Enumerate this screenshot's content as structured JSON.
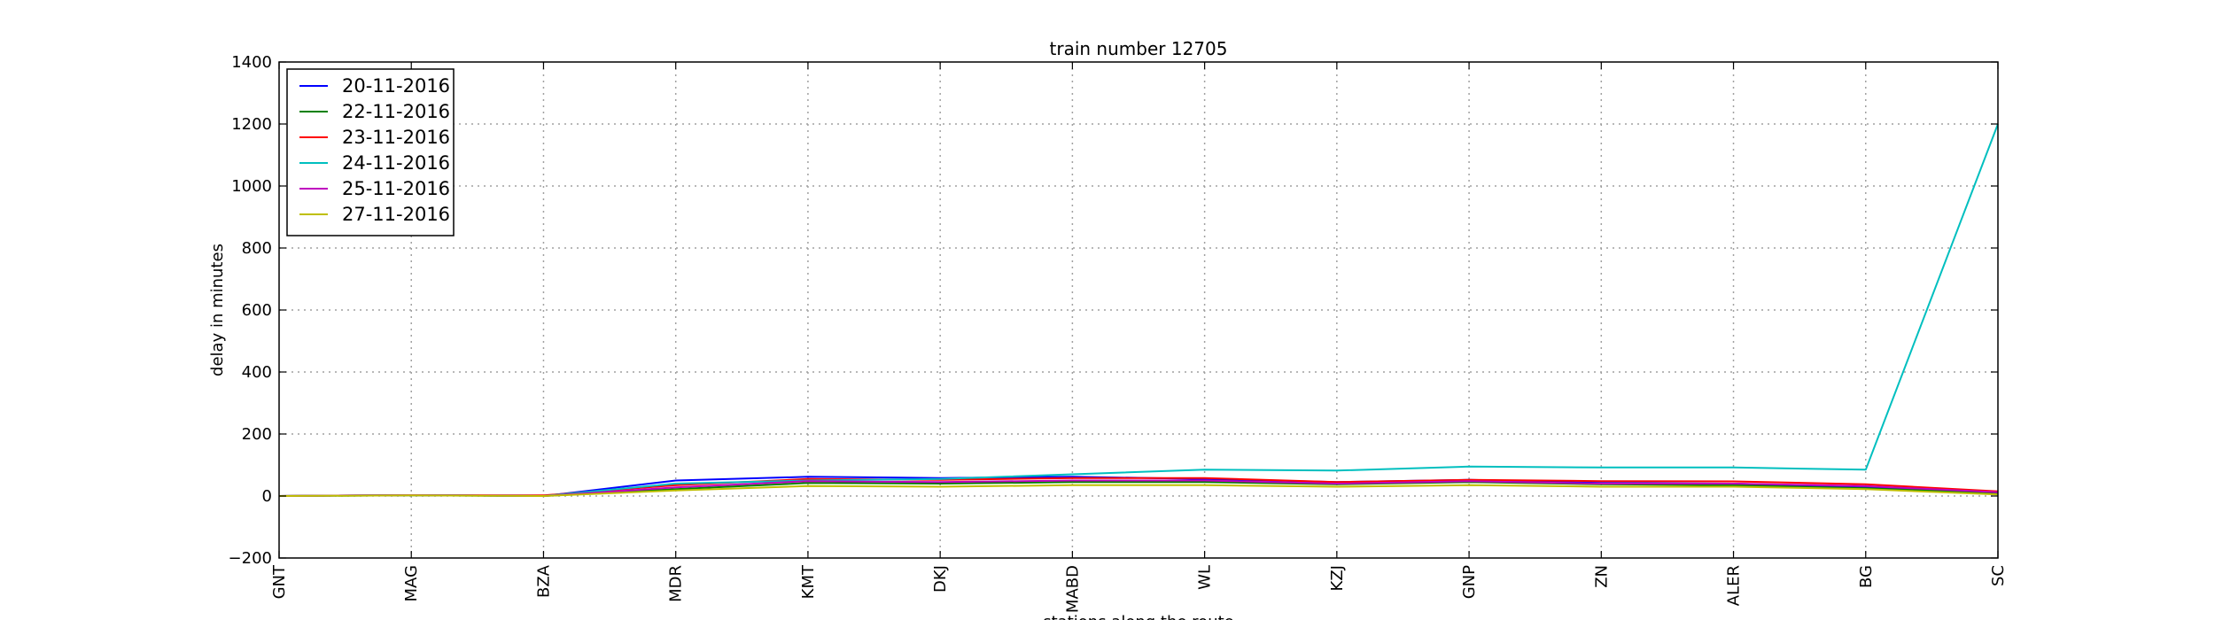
{
  "chart_data": {
    "type": "line",
    "title": "train number 12705",
    "xlabel": "stations along the route",
    "ylabel": "delay in minutes",
    "categories": [
      "GNT",
      "MAG",
      "BZA",
      "MDR",
      "KMT",
      "DKJ",
      "MABD",
      "WL",
      "KZJ",
      "GNP",
      "ZN",
      "ALER",
      "BG",
      "SC"
    ],
    "ylim": [
      -200,
      1400
    ],
    "yticks": [
      -200,
      0,
      200,
      400,
      600,
      800,
      1000,
      1200,
      1400
    ],
    "grid": true,
    "legend_position": "top-left",
    "series": [
      {
        "name": "20-11-2016",
        "color": "#0000ff",
        "values": [
          0,
          3,
          0,
          50,
          62,
          58,
          62,
          55,
          45,
          52,
          42,
          40,
          28,
          12
        ]
      },
      {
        "name": "22-11-2016",
        "color": "#008000",
        "values": [
          0,
          2,
          0,
          22,
          42,
          40,
          45,
          45,
          38,
          45,
          38,
          35,
          25,
          10
        ]
      },
      {
        "name": "23-11-2016",
        "color": "#ff0000",
        "values": [
          0,
          3,
          2,
          35,
          55,
          52,
          58,
          58,
          45,
          52,
          48,
          47,
          38,
          15
        ]
      },
      {
        "name": "24-11-2016",
        "color": "#00bfbf",
        "values": [
          0,
          3,
          0,
          40,
          50,
          55,
          70,
          85,
          82,
          95,
          92,
          92,
          85,
          1200
        ]
      },
      {
        "name": "25-11-2016",
        "color": "#bf00bf",
        "values": [
          0,
          3,
          0,
          28,
          48,
          45,
          50,
          50,
          40,
          48,
          40,
          40,
          32,
          12
        ]
      },
      {
        "name": "27-11-2016",
        "color": "#bfbf00",
        "values": [
          0,
          2,
          0,
          18,
          32,
          30,
          35,
          35,
          30,
          35,
          30,
          30,
          22,
          5
        ]
      }
    ]
  }
}
